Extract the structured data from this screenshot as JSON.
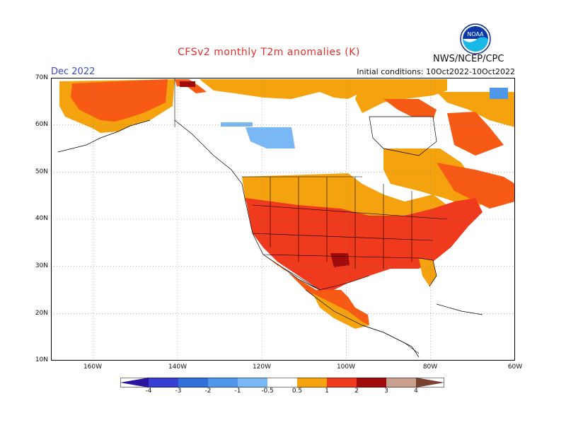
{
  "header": {
    "title": "CFSv2 monthly T2m anomalies (K)",
    "agency": "NWS/NCEP/CPC",
    "month": "Dec 2022",
    "initial_conditions": "Initial conditions: 10Oct2022-10Oct2022"
  },
  "logo": {
    "text": "NOAA",
    "name": "noaa-logo"
  },
  "map": {
    "lat_labels": [
      "70N",
      "60N",
      "50N",
      "40N",
      "30N",
      "20N",
      "10N"
    ],
    "lon_labels": [
      "160W",
      "140W",
      "120W",
      "100W",
      "80W",
      "60W"
    ],
    "lat_range": [
      10,
      70
    ],
    "lon_range": [
      -170,
      -60
    ],
    "grid": "dotted"
  },
  "colorbar": {
    "tick_labels": [
      "-4",
      "-3",
      "-2",
      "-1",
      "-0.5",
      "0.5",
      "1",
      "2",
      "3",
      "4"
    ],
    "colors": [
      "#2b14a0",
      "#3a3fd4",
      "#2f6fd8",
      "#4f97e8",
      "#7ab8f5",
      "#ffffff",
      "#f5a20f",
      "#f75a14",
      "#ef3a1d",
      "#a00a0a",
      "#c9a090",
      "#7a4030"
    ]
  }
}
